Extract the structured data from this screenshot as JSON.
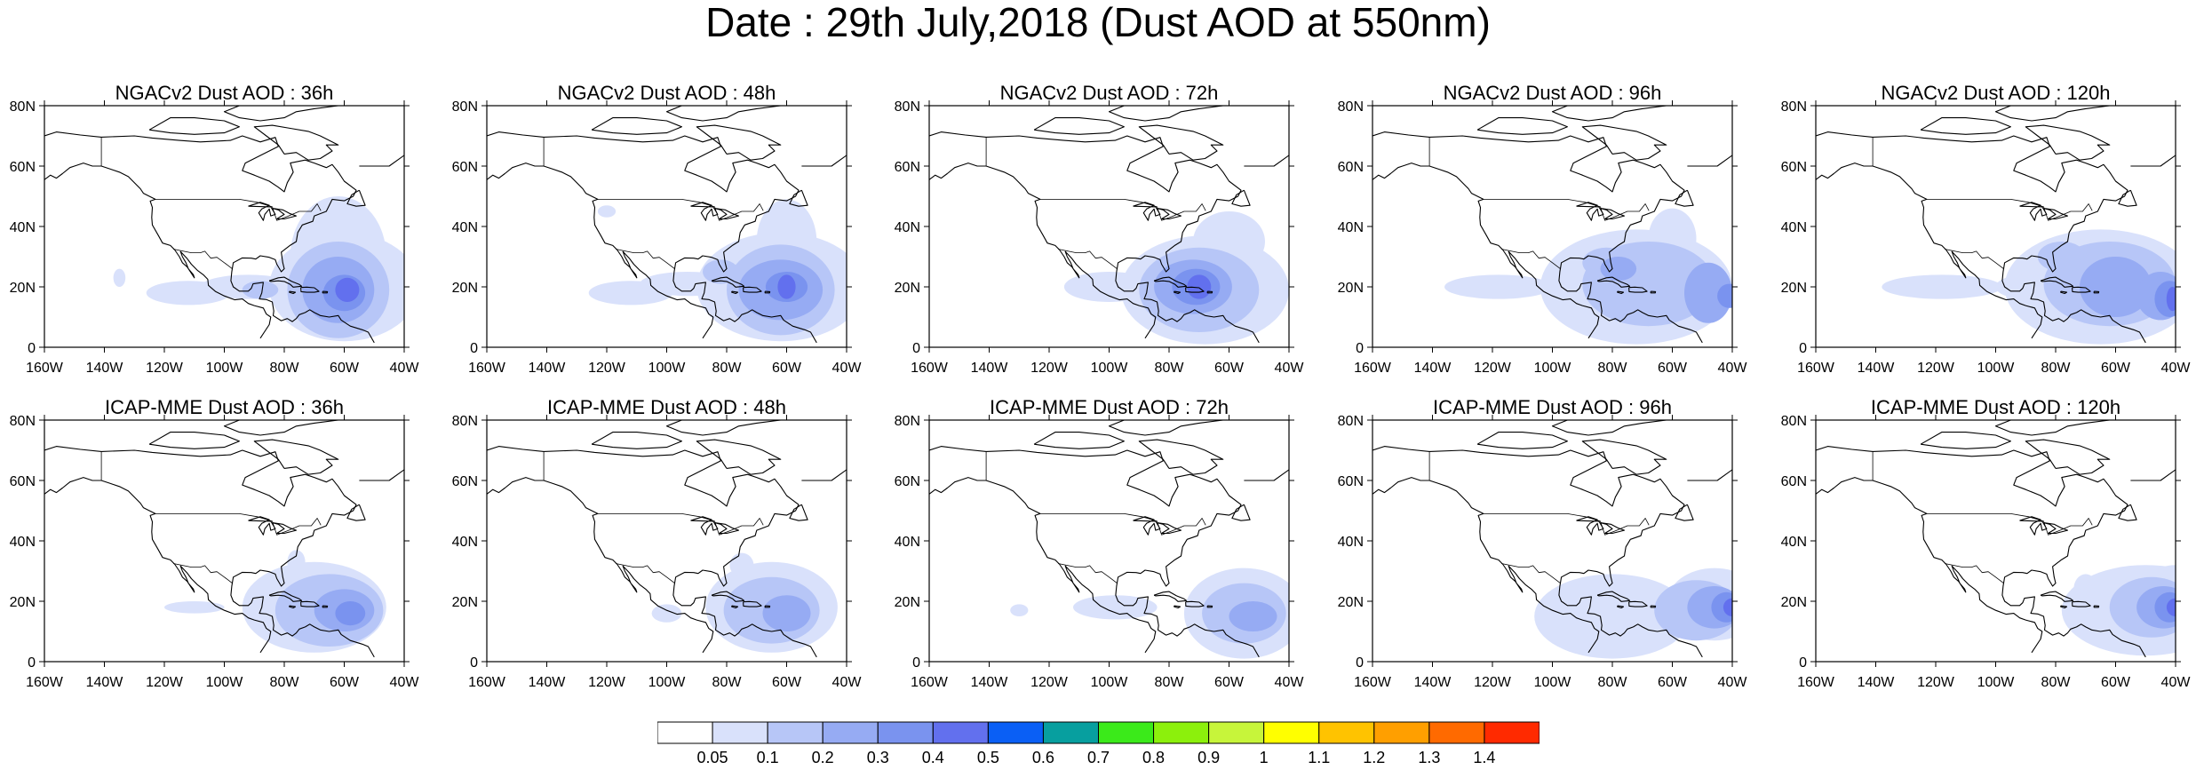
{
  "title": "Date : 29th July,2018 (Dust AOD at 550nm)",
  "axes": {
    "lat_labels": [
      "0",
      "20N",
      "40N",
      "60N",
      "80N"
    ],
    "lon_labels": [
      "160W",
      "140W",
      "120W",
      "100W",
      "80W",
      "60W",
      "40W"
    ],
    "lat_range": [
      0,
      80
    ],
    "lon_range": [
      -160,
      -40
    ]
  },
  "panels": [
    {
      "title": "NGACv2 Dust AOD : 36h",
      "model": "NGACv2",
      "lead_hours": 36
    },
    {
      "title": "NGACv2 Dust AOD : 48h",
      "model": "NGACv2",
      "lead_hours": 48
    },
    {
      "title": "NGACv2 Dust AOD : 72h",
      "model": "NGACv2",
      "lead_hours": 72
    },
    {
      "title": "NGACv2 Dust AOD : 96h",
      "model": "NGACv2",
      "lead_hours": 96
    },
    {
      "title": "NGACv2 Dust AOD : 120h",
      "model": "NGACv2",
      "lead_hours": 120
    },
    {
      "title": "ICAP-MME Dust AOD : 36h",
      "model": "ICAP-MME",
      "lead_hours": 36
    },
    {
      "title": "ICAP-MME Dust AOD : 48h",
      "model": "ICAP-MME",
      "lead_hours": 48
    },
    {
      "title": "ICAP-MME Dust AOD : 72h",
      "model": "ICAP-MME",
      "lead_hours": 72
    },
    {
      "title": "ICAP-MME Dust AOD : 96h",
      "model": "ICAP-MME",
      "lead_hours": 96
    },
    {
      "title": "ICAP-MME Dust AOD : 120h",
      "model": "ICAP-MME",
      "lead_hours": 120
    }
  ],
  "colorbar": {
    "labels": [
      "0.05",
      "0.1",
      "0.2",
      "0.3",
      "0.4",
      "0.5",
      "0.6",
      "0.7",
      "0.8",
      "0.9",
      "1",
      "1.1",
      "1.2",
      "1.3",
      "1.4"
    ],
    "colors": [
      "#ffffff",
      "#d9e1fb",
      "#b7c6f7",
      "#96abf3",
      "#7a93ef",
      "#6270ee",
      "#0a5ff5",
      "#079f9f",
      "#3bea1a",
      "#8cf00c",
      "#c7f53a",
      "#ffff00",
      "#ffc300",
      "#ff9f00",
      "#ff6a00",
      "#ff2a00"
    ]
  },
  "aod_level_colors": [
    "#d9e1fb",
    "#b7c6f7",
    "#96abf3",
    "#7a93ef",
    "#6270ee",
    "#0a5ff5"
  ]
}
